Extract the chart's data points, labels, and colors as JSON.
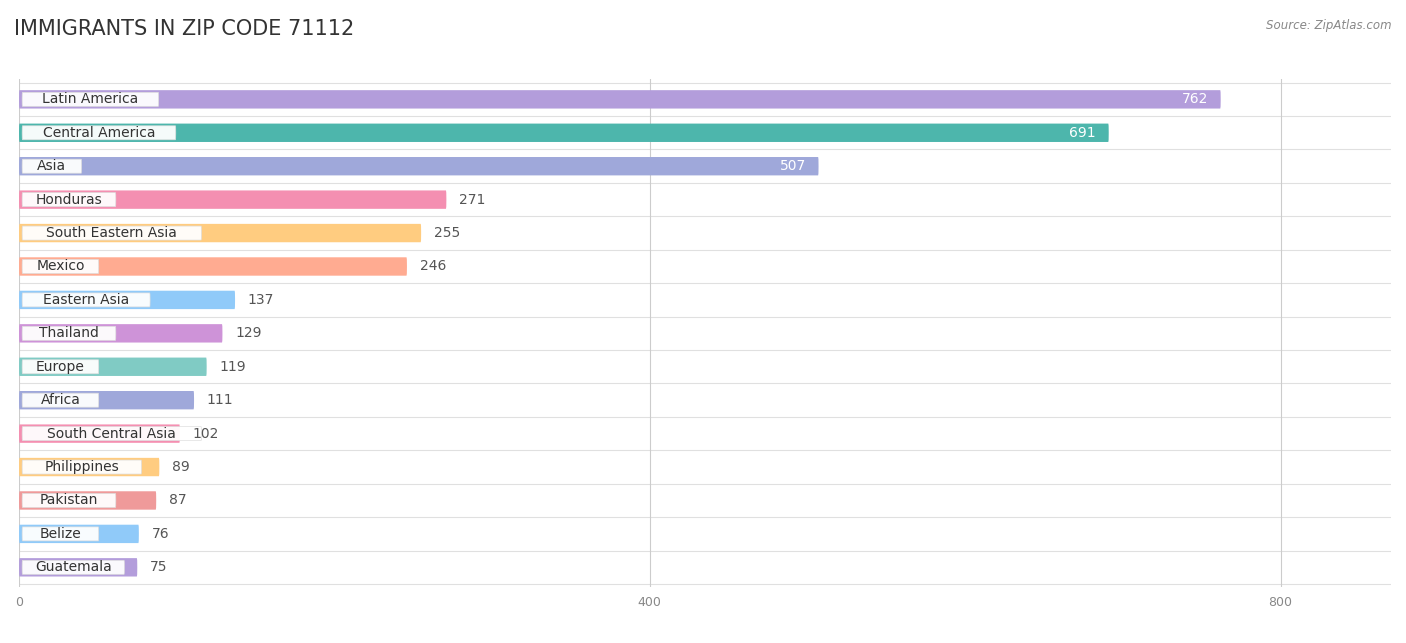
{
  "title": "Immigrants in Zip Code 71112",
  "source_text": "Source: ZipAtlas.com",
  "categories": [
    "Latin America",
    "Central America",
    "Asia",
    "Honduras",
    "South Eastern Asia",
    "Mexico",
    "Eastern Asia",
    "Thailand",
    "Europe",
    "Africa",
    "South Central Asia",
    "Philippines",
    "Pakistan",
    "Belize",
    "Guatemala"
  ],
  "values": [
    762,
    691,
    507,
    271,
    255,
    246,
    137,
    129,
    119,
    111,
    102,
    89,
    87,
    76,
    75
  ],
  "bar_colors": [
    "#b39ddb",
    "#4db6ac",
    "#9fa8da",
    "#f48fb1",
    "#ffcc80",
    "#ffab91",
    "#90caf9",
    "#ce93d8",
    "#80cbc4",
    "#9fa8da",
    "#f48fb1",
    "#ffcc80",
    "#ef9a9a",
    "#90caf9",
    "#b39ddb"
  ],
  "xlim_max": 870,
  "xticks": [
    0,
    400,
    800
  ],
  "background_color": "#ffffff",
  "row_sep_color": "#e0e0e0",
  "title_fontsize": 15,
  "label_fontsize": 10,
  "value_fontsize": 10,
  "value_inside_threshold": 400
}
